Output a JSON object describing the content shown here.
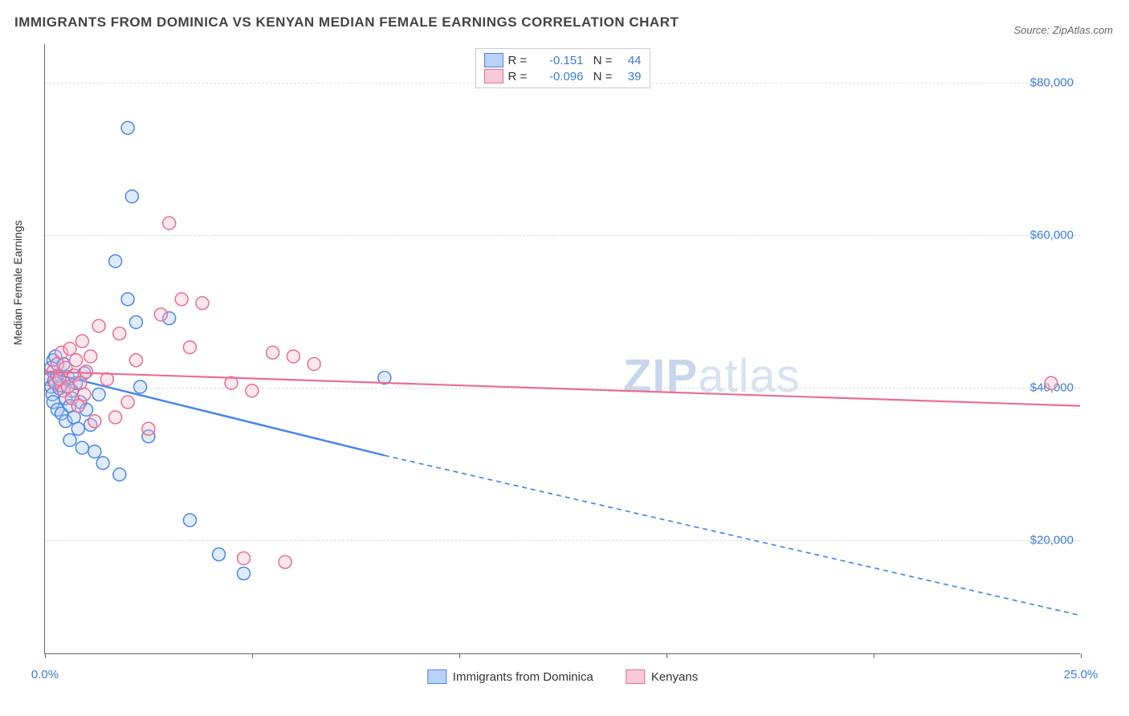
{
  "title": "IMMIGRANTS FROM DOMINICA VS KENYAN MEDIAN FEMALE EARNINGS CORRELATION CHART",
  "source_label": "Source: ZipAtlas.com",
  "watermark_bold": "ZIP",
  "watermark_rest": "atlas",
  "y_axis_title": "Median Female Earnings",
  "chart": {
    "type": "scatter",
    "xlim": [
      0,
      25
    ],
    "ylim": [
      5000,
      85000
    ],
    "x_tick_positions": [
      0,
      5,
      10,
      15,
      20,
      25
    ],
    "x_tick_labels_shown": {
      "0": "0.0%",
      "25": "25.0%"
    },
    "y_gridlines": [
      20000,
      40000,
      60000,
      80000
    ],
    "y_tick_labels": [
      "$20,000",
      "$40,000",
      "$60,000",
      "$80,000"
    ],
    "background_color": "#ffffff",
    "grid_color": "#dddddd",
    "axis_color": "#666666",
    "marker_radius": 8,
    "marker_fill_opacity": 0.35,
    "marker_stroke_width": 1.5,
    "title_fontsize": 17,
    "label_fontsize": 14,
    "tick_fontsize": 15,
    "tick_color": "#3b7dd8"
  },
  "series": [
    {
      "name": "Immigrants from Dominica",
      "color_stroke": "#4a86e8",
      "color_fill": "#a7c5f2",
      "swatch_border": "#4a86e8",
      "swatch_fill": "#b9d1f5",
      "R": "-0.151",
      "N": "44",
      "regression": {
        "x1": 0,
        "y1": 42000,
        "x_solid_end": 8.2,
        "y_solid_end": 31000,
        "x2": 25,
        "y2": 10000,
        "stroke_width": 2.5,
        "dash": "6,5"
      },
      "points": [
        [
          0.1,
          41000
        ],
        [
          0.15,
          42500
        ],
        [
          0.15,
          40000
        ],
        [
          0.18,
          39000
        ],
        [
          0.2,
          43500
        ],
        [
          0.2,
          38000
        ],
        [
          0.22,
          40800
        ],
        [
          0.25,
          44000
        ],
        [
          0.3,
          37000
        ],
        [
          0.3,
          41500
        ],
        [
          0.35,
          39800
        ],
        [
          0.4,
          36500
        ],
        [
          0.4,
          40200
        ],
        [
          0.45,
          43000
        ],
        [
          0.5,
          38500
        ],
        [
          0.5,
          35500
        ],
        [
          0.55,
          41300
        ],
        [
          0.6,
          37500
        ],
        [
          0.6,
          33000
        ],
        [
          0.65,
          39500
        ],
        [
          0.7,
          36000
        ],
        [
          0.75,
          40500
        ],
        [
          0.8,
          34500
        ],
        [
          0.85,
          38000
        ],
        [
          0.9,
          32000
        ],
        [
          0.95,
          41800
        ],
        [
          1.0,
          37000
        ],
        [
          1.1,
          35000
        ],
        [
          1.2,
          31500
        ],
        [
          1.3,
          39000
        ],
        [
          1.4,
          30000
        ],
        [
          1.7,
          56500
        ],
        [
          1.8,
          28500
        ],
        [
          2.0,
          74000
        ],
        [
          2.0,
          51500
        ],
        [
          2.1,
          65000
        ],
        [
          2.2,
          48500
        ],
        [
          2.3,
          40000
        ],
        [
          2.5,
          33500
        ],
        [
          3.0,
          49000
        ],
        [
          3.5,
          22500
        ],
        [
          4.2,
          18000
        ],
        [
          4.8,
          15500
        ],
        [
          8.2,
          41200
        ]
      ]
    },
    {
      "name": "Kenyans",
      "color_stroke": "#e86e92",
      "color_fill": "#f5b9cc",
      "swatch_border": "#e86e92",
      "swatch_fill": "#f8cad8",
      "R": "-0.096",
      "N": "39",
      "regression": {
        "x1": 0,
        "y1": 42000,
        "x_solid_end": 25,
        "y_solid_end": 37500,
        "x2": 25,
        "y2": 37500,
        "stroke_width": 2.2,
        "dash": "none"
      },
      "points": [
        [
          0.2,
          42000
        ],
        [
          0.25,
          40500
        ],
        [
          0.3,
          43000
        ],
        [
          0.35,
          41000
        ],
        [
          0.4,
          44500
        ],
        [
          0.45,
          39500
        ],
        [
          0.5,
          42500
        ],
        [
          0.55,
          40000
        ],
        [
          0.6,
          45000
        ],
        [
          0.65,
          38500
        ],
        [
          0.7,
          41500
        ],
        [
          0.75,
          43500
        ],
        [
          0.8,
          37500
        ],
        [
          0.85,
          40500
        ],
        [
          0.9,
          46000
        ],
        [
          0.95,
          39000
        ],
        [
          1.0,
          42000
        ],
        [
          1.1,
          44000
        ],
        [
          1.2,
          35500
        ],
        [
          1.3,
          48000
        ],
        [
          1.5,
          41000
        ],
        [
          1.7,
          36000
        ],
        [
          1.8,
          47000
        ],
        [
          2.0,
          38000
        ],
        [
          2.2,
          43500
        ],
        [
          2.5,
          34500
        ],
        [
          2.8,
          49500
        ],
        [
          3.0,
          61500
        ],
        [
          3.3,
          51500
        ],
        [
          3.5,
          45200
        ],
        [
          3.8,
          51000
        ],
        [
          4.5,
          40500
        ],
        [
          5.0,
          39500
        ],
        [
          5.5,
          44500
        ],
        [
          6.0,
          44000
        ],
        [
          4.8,
          17500
        ],
        [
          5.8,
          17000
        ],
        [
          6.5,
          43000
        ],
        [
          24.3,
          40500
        ]
      ]
    }
  ],
  "legend_top_labels": {
    "R": "R =",
    "N": "N ="
  },
  "legend_bottom": [
    {
      "label": "Immigrants from Dominica",
      "series_idx": 0
    },
    {
      "label": "Kenyans",
      "series_idx": 1
    }
  ]
}
